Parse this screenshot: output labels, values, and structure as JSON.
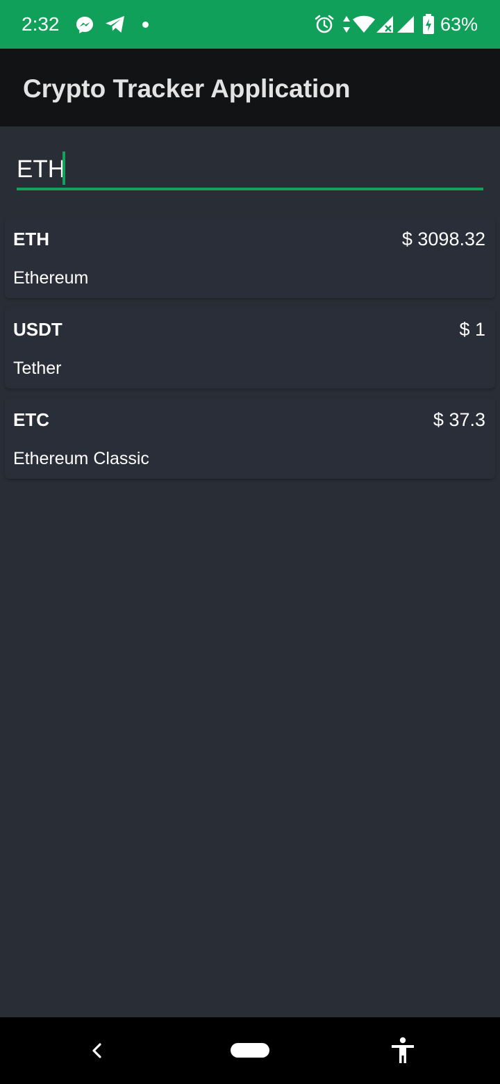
{
  "status_bar": {
    "time": "2:32",
    "battery_percent": "63%",
    "background_color": "#11a05a",
    "left_icons": [
      "messenger-icon",
      "telegram-icon",
      "notification-dot-icon"
    ],
    "right_icons": [
      "alarm-icon",
      "data-arrows-icon",
      "wifi-icon",
      "signal-x-icon",
      "signal-icon",
      "battery-charging-icon"
    ]
  },
  "app_bar": {
    "title": "Crypto Tracker Application"
  },
  "search": {
    "value": "ETH",
    "accent_color": "#17a05c"
  },
  "coins": [
    {
      "symbol": "ETH",
      "name": "Ethereum",
      "price": "$ 3098.32"
    },
    {
      "symbol": "USDT",
      "name": "Tether",
      "price": "$ 1"
    },
    {
      "symbol": "ETC",
      "name": "Ethereum Classic",
      "price": "$ 37.3"
    }
  ],
  "nav_bar": {
    "icons": [
      "back-icon",
      "home-pill-icon",
      "accessibility-icon"
    ]
  }
}
